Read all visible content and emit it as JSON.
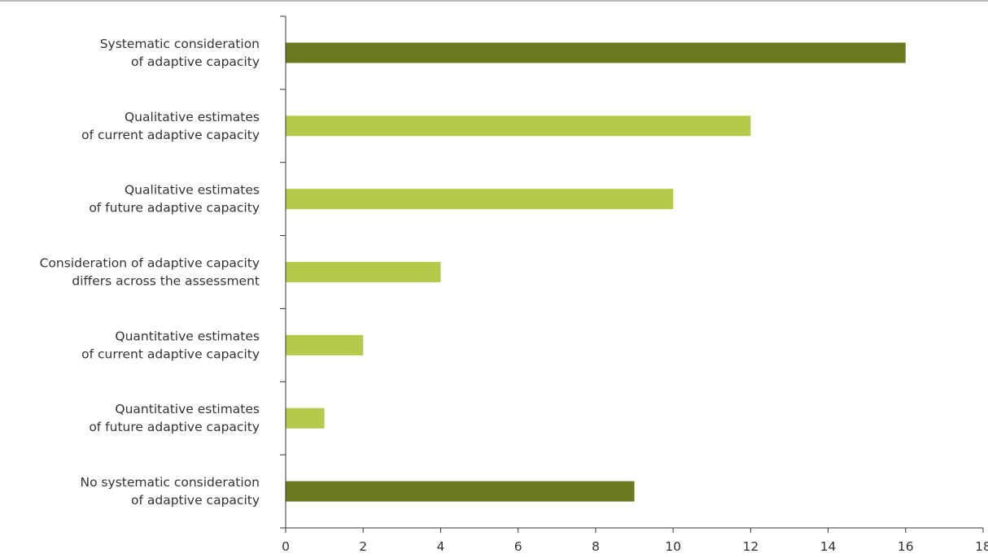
{
  "chart_data": {
    "type": "bar",
    "orientation": "horizontal",
    "categories": [
      [
        "Systematic consideration",
        "of adaptive capacity"
      ],
      [
        "Qualitative estimates",
        "of current adaptive capacity"
      ],
      [
        "Qualitative estimates",
        "of future adaptive capacity"
      ],
      [
        "Consideration of adaptive capacity",
        "differs across the assessment"
      ],
      [
        "Quantitative estimates",
        "of current adaptive capacity"
      ],
      [
        "Quantitative estimates",
        "of future adaptive capacity"
      ],
      [
        "No systematic consideration",
        "of adaptive capacity"
      ]
    ],
    "values": [
      16,
      12,
      10,
      4,
      2,
      1,
      9
    ],
    "bar_colors": [
      "#6b7a21",
      "#b5ca4a",
      "#b5ca4a",
      "#b5ca4a",
      "#b5ca4a",
      "#b5ca4a",
      "#6b7a21"
    ],
    "xlim": [
      0,
      18
    ],
    "xticks": [
      0,
      2,
      4,
      6,
      8,
      10,
      12,
      14,
      16,
      18
    ],
    "title": "",
    "xlabel": "",
    "ylabel": "",
    "grid": false,
    "legend": "none"
  }
}
